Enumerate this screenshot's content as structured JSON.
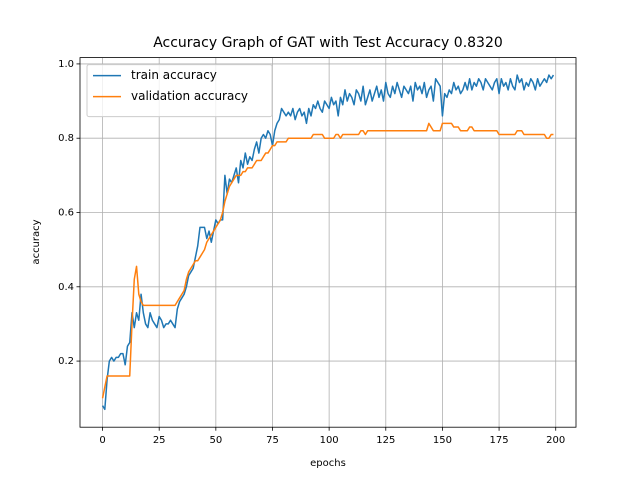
{
  "chart_data": {
    "type": "line",
    "title": "Accuracy Graph of GAT with Test Accuracy 0.8320",
    "xlabel": "epochs",
    "ylabel": "accuracy",
    "x": [
      0,
      1,
      2,
      3,
      4,
      5,
      6,
      7,
      8,
      9,
      10,
      11,
      12,
      13,
      14,
      15,
      16,
      17,
      18,
      19,
      20,
      21,
      22,
      23,
      24,
      25,
      26,
      27,
      28,
      29,
      30,
      31,
      32,
      33,
      34,
      35,
      36,
      37,
      38,
      39,
      40,
      41,
      42,
      43,
      44,
      45,
      46,
      47,
      48,
      49,
      50,
      51,
      52,
      53,
      54,
      55,
      56,
      57,
      58,
      59,
      60,
      61,
      62,
      63,
      64,
      65,
      66,
      67,
      68,
      69,
      70,
      71,
      72,
      73,
      74,
      75,
      76,
      77,
      78,
      79,
      80,
      81,
      82,
      83,
      84,
      85,
      86,
      87,
      88,
      89,
      90,
      91,
      92,
      93,
      94,
      95,
      96,
      97,
      98,
      99,
      100,
      101,
      102,
      103,
      104,
      105,
      106,
      107,
      108,
      109,
      110,
      111,
      112,
      113,
      114,
      115,
      116,
      117,
      118,
      119,
      120,
      121,
      122,
      123,
      124,
      125,
      126,
      127,
      128,
      129,
      130,
      131,
      132,
      133,
      134,
      135,
      136,
      137,
      138,
      139,
      140,
      141,
      142,
      143,
      144,
      145,
      146,
      147,
      148,
      149,
      150,
      151,
      152,
      153,
      154,
      155,
      156,
      157,
      158,
      159,
      160,
      161,
      162,
      163,
      164,
      165,
      166,
      167,
      168,
      169,
      170,
      171,
      172,
      173,
      174,
      175,
      176,
      177,
      178,
      179,
      180,
      181,
      182,
      183,
      184,
      185,
      186,
      187,
      188,
      189,
      190,
      191,
      192,
      193,
      194,
      195,
      196,
      197,
      198,
      199
    ],
    "series": [
      {
        "name": "train accuracy",
        "color": "#1f77b4",
        "values": [
          0.08,
          0.07,
          0.15,
          0.2,
          0.21,
          0.2,
          0.21,
          0.21,
          0.22,
          0.22,
          0.19,
          0.24,
          0.25,
          0.33,
          0.29,
          0.33,
          0.31,
          0.38,
          0.33,
          0.3,
          0.29,
          0.33,
          0.31,
          0.3,
          0.29,
          0.32,
          0.31,
          0.29,
          0.3,
          0.3,
          0.31,
          0.3,
          0.29,
          0.34,
          0.36,
          0.37,
          0.38,
          0.4,
          0.43,
          0.44,
          0.45,
          0.48,
          0.51,
          0.56,
          0.56,
          0.56,
          0.53,
          0.55,
          0.52,
          0.55,
          0.58,
          0.57,
          0.58,
          0.58,
          0.7,
          0.65,
          0.69,
          0.68,
          0.7,
          0.72,
          0.68,
          0.74,
          0.72,
          0.76,
          0.73,
          0.75,
          0.74,
          0.77,
          0.79,
          0.76,
          0.8,
          0.81,
          0.8,
          0.82,
          0.81,
          0.78,
          0.82,
          0.84,
          0.85,
          0.88,
          0.87,
          0.86,
          0.87,
          0.86,
          0.88,
          0.85,
          0.87,
          0.88,
          0.86,
          0.87,
          0.84,
          0.88,
          0.86,
          0.89,
          0.88,
          0.9,
          0.88,
          0.87,
          0.9,
          0.89,
          0.88,
          0.91,
          0.89,
          0.9,
          0.86,
          0.91,
          0.89,
          0.93,
          0.9,
          0.92,
          0.91,
          0.89,
          0.93,
          0.92,
          0.9,
          0.94,
          0.89,
          0.91,
          0.93,
          0.9,
          0.92,
          0.94,
          0.91,
          0.93,
          0.9,
          0.95,
          0.92,
          0.91,
          0.94,
          0.92,
          0.95,
          0.93,
          0.91,
          0.94,
          0.93,
          0.92,
          0.94,
          0.9,
          0.95,
          0.93,
          0.94,
          0.92,
          0.95,
          0.91,
          0.93,
          0.94,
          0.9,
          0.96,
          0.95,
          0.94,
          0.86,
          0.92,
          0.91,
          0.93,
          0.92,
          0.95,
          0.93,
          0.94,
          0.92,
          0.93,
          0.95,
          0.93,
          0.96,
          0.93,
          0.95,
          0.94,
          0.96,
          0.95,
          0.93,
          0.96,
          0.95,
          0.94,
          0.93,
          0.95,
          0.96,
          0.92,
          0.96,
          0.94,
          0.95,
          0.93,
          0.96,
          0.94,
          0.93,
          0.97,
          0.95,
          0.96,
          0.93,
          0.95,
          0.94,
          0.96,
          0.95,
          0.93,
          0.96,
          0.94,
          0.95,
          0.96,
          0.95,
          0.97,
          0.96,
          0.97
        ]
      },
      {
        "name": "validation accuracy",
        "color": "#ff7f0e",
        "values": [
          0.1,
          0.13,
          0.16,
          0.16,
          0.16,
          0.16,
          0.16,
          0.16,
          0.16,
          0.16,
          0.16,
          0.16,
          0.16,
          0.3,
          0.42,
          0.455,
          0.38,
          0.36,
          0.35,
          0.35,
          0.35,
          0.35,
          0.35,
          0.35,
          0.35,
          0.35,
          0.35,
          0.35,
          0.35,
          0.35,
          0.35,
          0.35,
          0.35,
          0.36,
          0.37,
          0.38,
          0.39,
          0.42,
          0.44,
          0.45,
          0.46,
          0.47,
          0.47,
          0.48,
          0.49,
          0.5,
          0.52,
          0.53,
          0.54,
          0.55,
          0.56,
          0.57,
          0.58,
          0.6,
          0.63,
          0.65,
          0.67,
          0.68,
          0.69,
          0.7,
          0.7,
          0.7,
          0.71,
          0.71,
          0.72,
          0.72,
          0.72,
          0.73,
          0.74,
          0.74,
          0.74,
          0.75,
          0.76,
          0.76,
          0.77,
          0.78,
          0.78,
          0.79,
          0.79,
          0.79,
          0.79,
          0.79,
          0.8,
          0.8,
          0.8,
          0.8,
          0.8,
          0.8,
          0.8,
          0.8,
          0.8,
          0.8,
          0.8,
          0.81,
          0.81,
          0.81,
          0.81,
          0.81,
          0.8,
          0.8,
          0.8,
          0.8,
          0.8,
          0.81,
          0.81,
          0.8,
          0.81,
          0.81,
          0.81,
          0.81,
          0.81,
          0.81,
          0.81,
          0.81,
          0.82,
          0.82,
          0.81,
          0.82,
          0.82,
          0.82,
          0.82,
          0.82,
          0.82,
          0.82,
          0.82,
          0.82,
          0.82,
          0.82,
          0.82,
          0.82,
          0.82,
          0.82,
          0.82,
          0.82,
          0.82,
          0.82,
          0.82,
          0.82,
          0.82,
          0.82,
          0.82,
          0.82,
          0.82,
          0.82,
          0.84,
          0.83,
          0.82,
          0.82,
          0.82,
          0.82,
          0.84,
          0.84,
          0.84,
          0.84,
          0.84,
          0.83,
          0.83,
          0.83,
          0.82,
          0.82,
          0.82,
          0.82,
          0.83,
          0.83,
          0.82,
          0.82,
          0.82,
          0.82,
          0.82,
          0.82,
          0.82,
          0.82,
          0.82,
          0.82,
          0.82,
          0.81,
          0.81,
          0.81,
          0.81,
          0.81,
          0.81,
          0.81,
          0.81,
          0.82,
          0.82,
          0.82,
          0.81,
          0.81,
          0.81,
          0.81,
          0.81,
          0.81,
          0.81,
          0.81,
          0.81,
          0.81,
          0.8,
          0.8,
          0.81,
          0.81
        ]
      }
    ],
    "xlim": [
      -9.95,
      208.95
    ],
    "ylim": [
      0.022,
      1.017
    ],
    "xticks": [
      0,
      25,
      50,
      75,
      100,
      125,
      150,
      175,
      200
    ],
    "yticks": [
      0.2,
      0.4,
      0.6,
      0.8,
      {
        "value": 1,
        "label": "1.0"
      }
    ],
    "grid": true,
    "legend": "upper left"
  }
}
